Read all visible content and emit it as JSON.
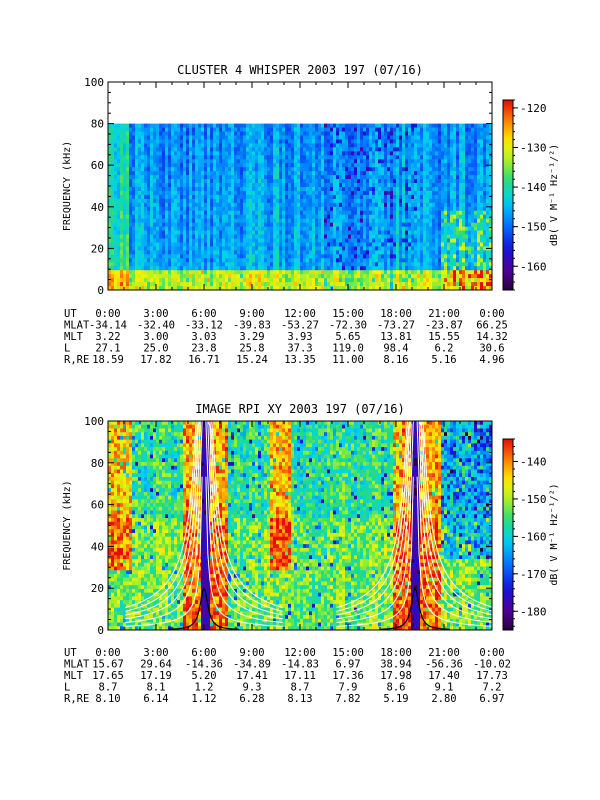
{
  "chart_data": [
    {
      "type": "heatmap",
      "title": "CLUSTER 4 WHISPER 2003 197 (07/16)",
      "ylabel": "FREQUENCY (kHz)",
      "ylim": [
        0,
        100
      ],
      "y_ticks": [
        "0",
        "20",
        "40",
        "60",
        "80",
        "100"
      ],
      "data_ymax": 80,
      "colorbar": {
        "label": "dB( V M⁻¹ Hz⁻¹/²)",
        "range": [
          -166,
          -118
        ],
        "ticks": [
          "-120",
          "-130",
          "-140",
          "-150",
          "-160"
        ]
      },
      "ephemeris": {
        "UT": [
          "0:00",
          "3:00",
          "6:00",
          "9:00",
          "12:00",
          "15:00",
          "18:00",
          "21:00",
          "0:00"
        ],
        "MLAT": [
          "-34.14",
          "-32.40",
          "-33.12",
          "-39.83",
          "-53.27",
          "-72.30",
          "-73.27",
          "-23.87",
          "66.25"
        ],
        "MLT": [
          "3.22",
          "3.00",
          "3.03",
          "3.29",
          "3.93",
          "5.65",
          "13.81",
          "15.55",
          "14.32"
        ],
        "L": [
          "27.1",
          "25.0",
          "23.8",
          "25.8",
          "37.3",
          "119.0",
          "98.4",
          "6.2",
          "30.6"
        ],
        "R,RE": [
          "18.59",
          "17.82",
          "16.71",
          "15.24",
          "13.35",
          "11.00",
          "8.16",
          "5.16",
          "4.96"
        ]
      },
      "ephemeris_labels": {
        "UT": "UT",
        "MLAT": "MLAT",
        "MLT": "MLT",
        "L": "L",
        "R,RE": "R,RE"
      }
    },
    {
      "type": "heatmap",
      "title": "IMAGE RPI XY 2003 197 (07/16)",
      "ylabel": "FREQUENCY (kHz)",
      "ylim": [
        0,
        100
      ],
      "y_ticks": [
        "0",
        "20",
        "40",
        "60",
        "80",
        "100"
      ],
      "colorbar": {
        "label": "dB( V M⁻¹ Hz⁻¹/²)",
        "range": [
          -185,
          -134
        ],
        "ticks": [
          "-140",
          "-150",
          "-160",
          "-170",
          "-180"
        ]
      },
      "ephemeris": {
        "UT": [
          "0:00",
          "3:00",
          "6:00",
          "9:00",
          "12:00",
          "15:00",
          "18:00",
          "21:00",
          "0:00"
        ],
        "MLAT": [
          "15.67",
          "29.64",
          "-14.36",
          "-34.89",
          "-14.83",
          "6.97",
          "38.94",
          "-56.36",
          "-10.02"
        ],
        "MLT": [
          "17.65",
          "17.19",
          "5.20",
          "17.41",
          "17.11",
          "17.36",
          "17.98",
          "17.40",
          "17.73"
        ],
        "L": [
          "8.7",
          "8.1",
          "1.2",
          "9.3",
          "8.7",
          "7.9",
          "8.6",
          "9.1",
          "7.2"
        ],
        "R,RE": [
          "8.10",
          "6.14",
          "1.12",
          "6.28",
          "8.13",
          "7.82",
          "5.19",
          "2.80",
          "6.97"
        ]
      },
      "ephemeris_labels": {
        "UT": "UT",
        "MLAT": "MLAT",
        "MLT": "MLT",
        "L": "L",
        "R,RE": "R,RE"
      }
    }
  ]
}
